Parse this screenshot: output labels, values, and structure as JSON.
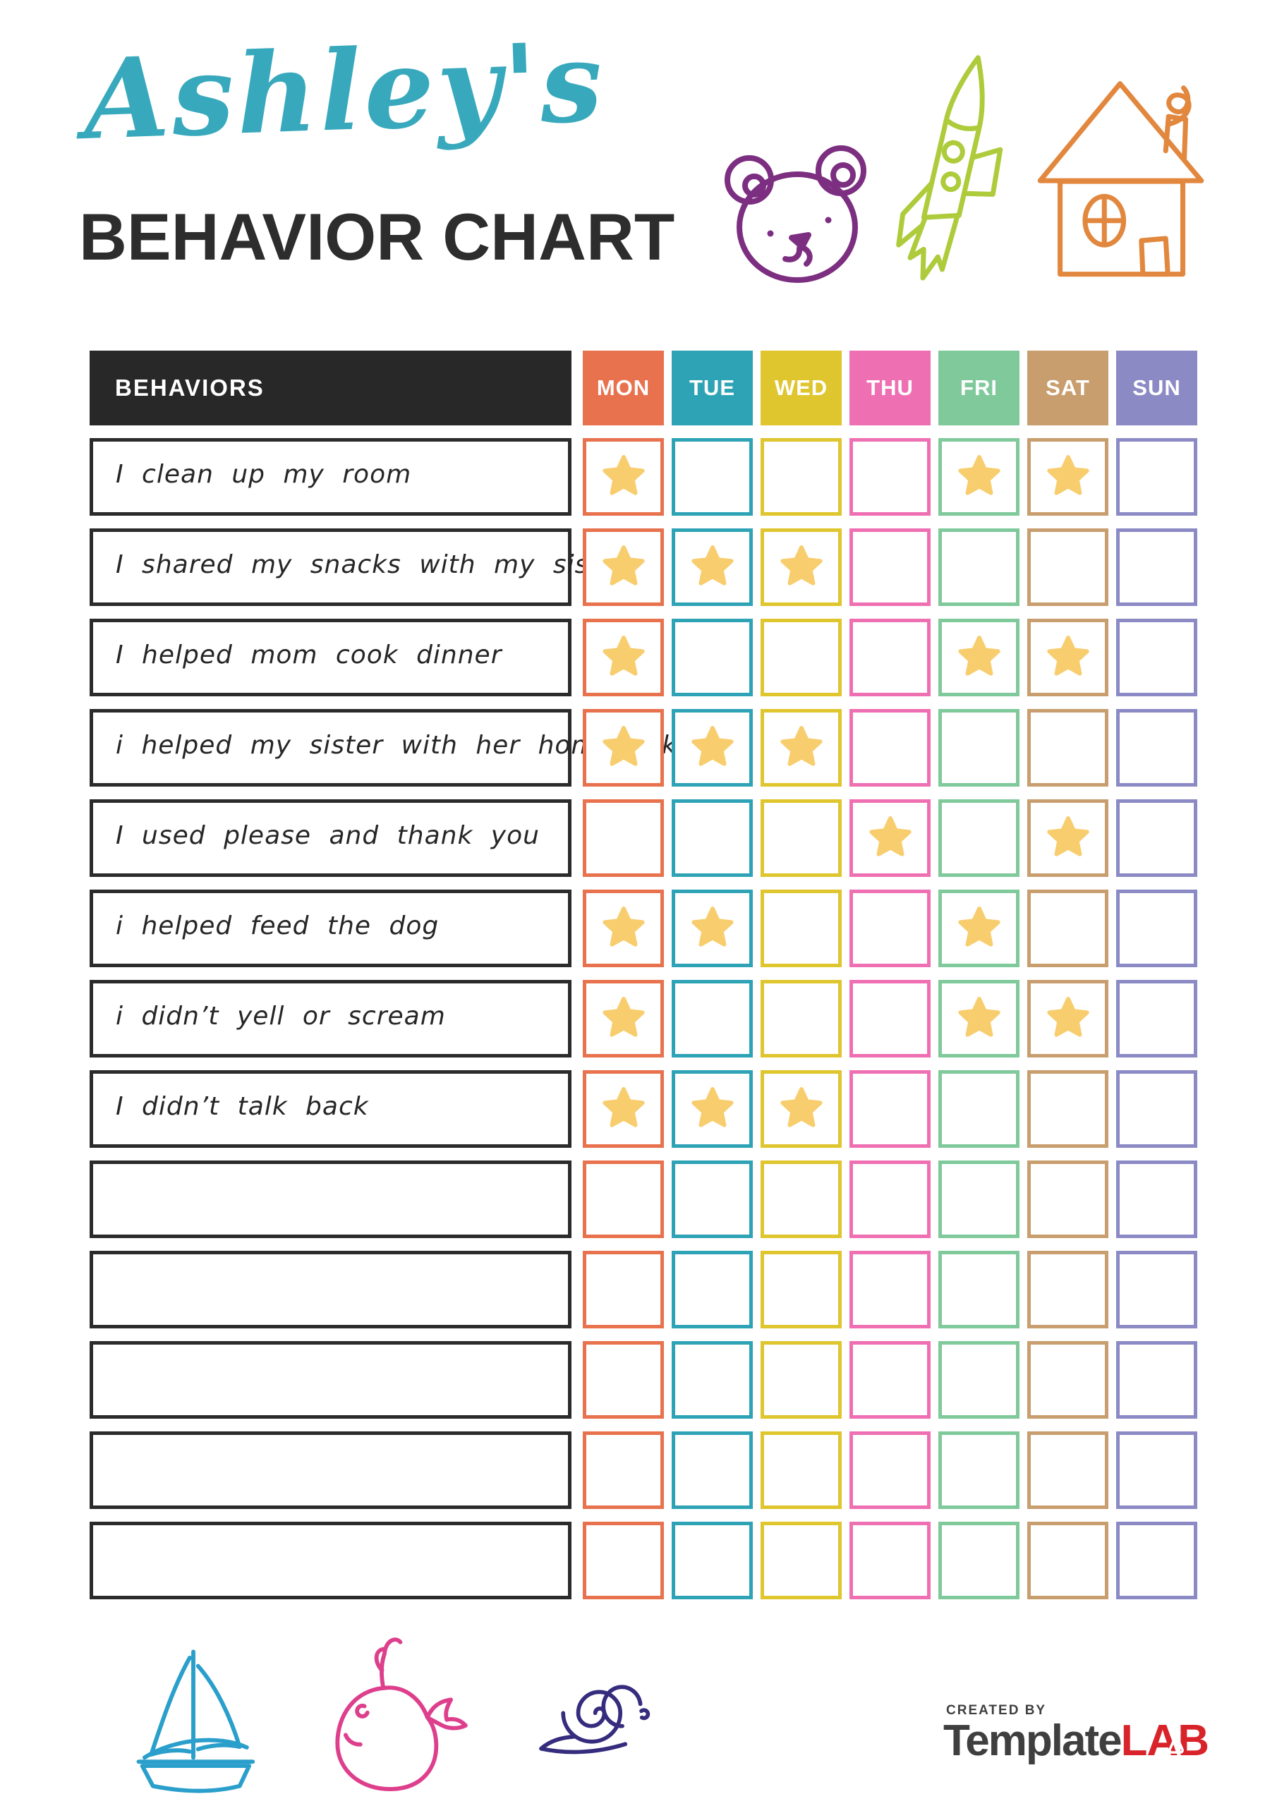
{
  "header": {
    "script_title": "Ashley's",
    "main_title": "BEHAVIOR CHART"
  },
  "table": {
    "behaviors_header": "BEHAVIORS",
    "days": [
      {
        "label": "MON",
        "color": "#E8724E"
      },
      {
        "label": "TUE",
        "color": "#2FA3B6"
      },
      {
        "label": "WED",
        "color": "#DFC52E"
      },
      {
        "label": "THU",
        "color": "#EF6FB3"
      },
      {
        "label": "FRI",
        "color": "#7FC99B"
      },
      {
        "label": "SAT",
        "color": "#C89E6F"
      },
      {
        "label": "SUN",
        "color": "#8C8AC5"
      }
    ],
    "rows": [
      {
        "label": "I clean up my room",
        "stars": [
          true,
          false,
          false,
          false,
          true,
          true,
          false
        ]
      },
      {
        "label": "I shared my snacks with my sister",
        "stars": [
          true,
          true,
          true,
          false,
          false,
          false,
          false
        ]
      },
      {
        "label": "I helped mom cook dinner",
        "stars": [
          true,
          false,
          false,
          false,
          true,
          true,
          false
        ]
      },
      {
        "label": "i helped my sister with her homework",
        "stars": [
          true,
          true,
          true,
          false,
          false,
          false,
          false
        ]
      },
      {
        "label": "I used please and thank you",
        "stars": [
          false,
          false,
          false,
          true,
          false,
          true,
          false
        ]
      },
      {
        "label": "i helped feed the dog",
        "stars": [
          true,
          true,
          false,
          false,
          true,
          false,
          false
        ]
      },
      {
        "label": "i didn’t yell or scream",
        "stars": [
          true,
          false,
          false,
          false,
          true,
          true,
          false
        ]
      },
      {
        "label": "I didn’t talk back",
        "stars": [
          true,
          true,
          true,
          false,
          false,
          false,
          false
        ]
      },
      {
        "label": "",
        "stars": [
          false,
          false,
          false,
          false,
          false,
          false,
          false
        ]
      },
      {
        "label": "",
        "stars": [
          false,
          false,
          false,
          false,
          false,
          false,
          false
        ]
      },
      {
        "label": "",
        "stars": [
          false,
          false,
          false,
          false,
          false,
          false,
          false
        ]
      },
      {
        "label": "",
        "stars": [
          false,
          false,
          false,
          false,
          false,
          false,
          false
        ]
      },
      {
        "label": "",
        "stars": [
          false,
          false,
          false,
          false,
          false,
          false,
          false
        ]
      }
    ]
  },
  "footer": {
    "created_by": "CREATED BY",
    "brand_first": "Template",
    "brand_second": "LAB"
  },
  "icons": [
    "bear-icon",
    "rocket-icon",
    "house-icon",
    "sailboat-icon",
    "whale-icon",
    "snail-icon",
    "star-icon",
    "flask-icon"
  ],
  "colors": {
    "script_title": "#38A9BC",
    "main_title": "#2D2D2D",
    "table_header_bg": "#282828",
    "table_header_text": "#FFFFFF",
    "label_border": "#2B2B2B",
    "star": "#F8CD6E",
    "bear": "#7C2E80",
    "rocket": "#AECB3C",
    "house": "#E2873E",
    "sailboat": "#2B9FCB",
    "whale": "#DE3F8C",
    "snail": "#352C7E",
    "brand_gray": "#3F3F3F",
    "brand_red": "#D8232A"
  }
}
